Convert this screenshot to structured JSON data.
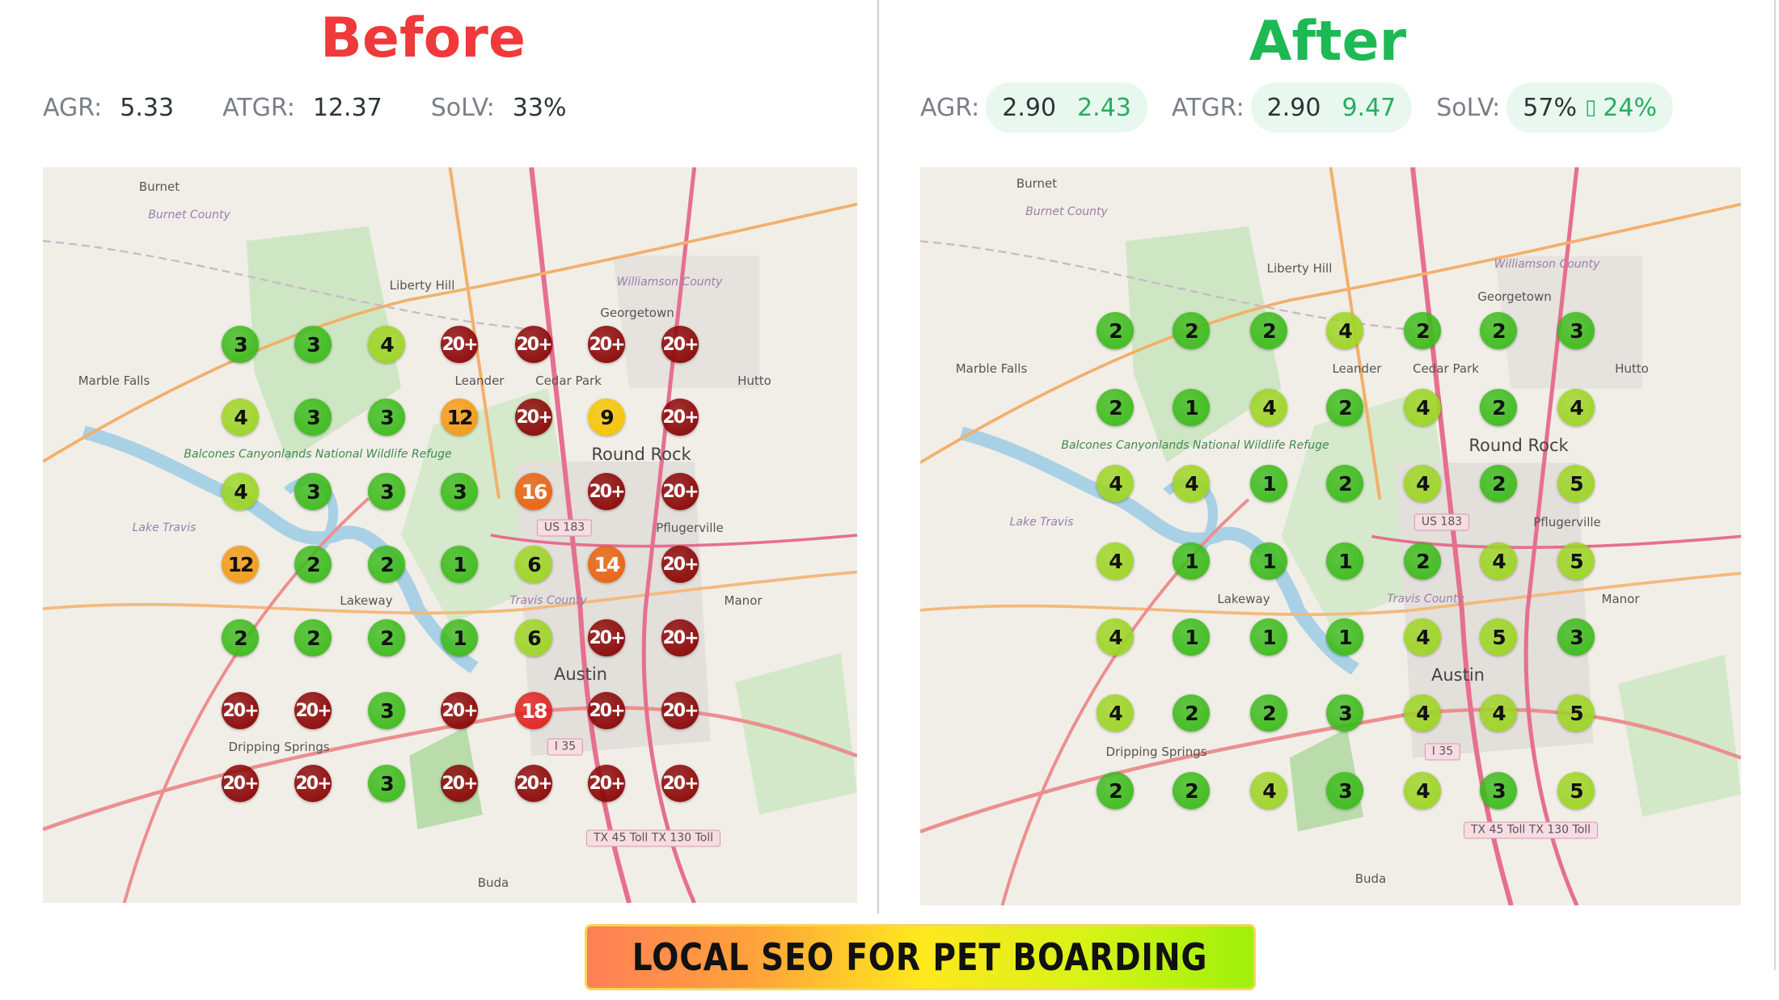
{
  "before": {
    "title": "Before",
    "title_color": "#f0393a",
    "agr_label": "AGR:",
    "agr": "5.33",
    "atgr_label": "ATGR:",
    "atgr": "12.37",
    "solv_label": "SoLV:",
    "solv": "33%",
    "grid": [
      [
        "3",
        "3",
        "4",
        "20+",
        "20+",
        "20+",
        "20+"
      ],
      [
        "4",
        "3",
        "3",
        "12",
        "20+",
        "9",
        "20+"
      ],
      [
        "4",
        "3",
        "3",
        "3",
        "16",
        "20+",
        "20+"
      ],
      [
        "12",
        "2",
        "2",
        "1",
        "6",
        "14",
        "20+"
      ],
      [
        "2",
        "2",
        "2",
        "1",
        "6",
        "20+",
        "20+"
      ],
      [
        "20+",
        "20+",
        "3",
        "20+",
        "18",
        "20+",
        "20+"
      ],
      [
        "20+",
        "20+",
        "3",
        "20+",
        "20+",
        "20+",
        "20+"
      ]
    ]
  },
  "after": {
    "title": "After",
    "title_color": "#1db954",
    "agr_label": "AGR:",
    "agr_old": "2.90",
    "agr_new": "2.43",
    "atgr_label": "ATGR:",
    "atgr_old": "2.90",
    "atgr_new": "9.47",
    "solv_label": "SoLV:",
    "solv_old": "57%",
    "solv_sep": "▯",
    "solv_new": "24%",
    "grid": [
      [
        "2",
        "2",
        "2",
        "4",
        "2",
        "2",
        "3"
      ],
      [
        "2",
        "1",
        "4",
        "2",
        "4",
        "2",
        "4"
      ],
      [
        "4",
        "4",
        "1",
        "2",
        "4",
        "2",
        "5"
      ],
      [
        "4",
        "1",
        "1",
        "1",
        "2",
        "4",
        "5"
      ],
      [
        "4",
        "1",
        "1",
        "1",
        "4",
        "5",
        "3"
      ],
      [
        "4",
        "2",
        "2",
        "3",
        "4",
        "4",
        "5"
      ],
      [
        "2",
        "2",
        "4",
        "3",
        "4",
        "3",
        "5"
      ]
    ]
  },
  "map": {
    "labels": [
      "Burnet",
      "Burnet County",
      "Liberty Hill",
      "Georgetown",
      "Williamson County",
      "Marble Falls",
      "Leander",
      "Balcones Canyonlands National Wildlife Refuge",
      "Cedar Park",
      "Round Rock",
      "Hutto",
      "Lake Travis",
      "US 183",
      "Pflugerville",
      "Lakeway",
      "Travis County",
      "Manor",
      "Austin",
      "I 35",
      "Dripping Springs",
      "TX 45 Toll TX 130 Toll",
      "Buda"
    ]
  },
  "rank_colors": {
    "top3": "#3dbb1c",
    "4to6": "#9dd424",
    "7to10": "#f5c400",
    "11to13": "#f39a16",
    "14to17": "#e8620e",
    "18to20": "#e0221e",
    "20plus": "#8b0606"
  },
  "banner": {
    "text": "LOCAL SEO FOR PET BOARDING"
  }
}
